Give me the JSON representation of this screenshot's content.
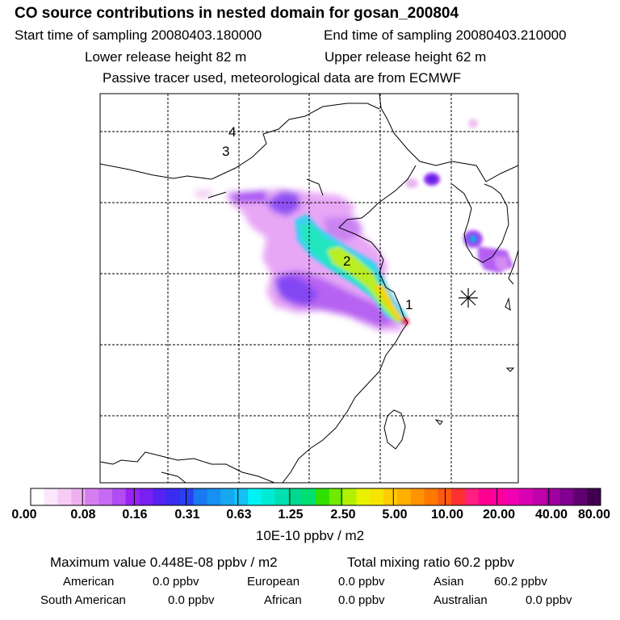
{
  "header": {
    "title": "CO  source contributions in nested domain for gosan_200804",
    "start_label": "Start time of sampling 20080403.180000",
    "end_label": "End time of sampling 20080403.210000",
    "lower_label": "Lower release height   82 m",
    "upper_label": "Upper release height   62 m",
    "note": "Passive tracer used, meteorological data are from ECMWF"
  },
  "map": {
    "markers": [
      "1",
      "2",
      "3",
      "4"
    ],
    "station_icon": "asterisk-station-icon"
  },
  "colorbar": {
    "ticks": [
      "0.00",
      "0.08",
      "0.16",
      "0.31",
      "0.63",
      "1.25",
      "2.50",
      "5.00",
      "10.00",
      "20.00",
      "40.00",
      "80.00"
    ],
    "units": "10E-10 ppbv / m2",
    "colors": [
      "#ffffff",
      "#fbe6fb",
      "#f6ccf6",
      "#efb0f2",
      "#d67ef0",
      "#c66cf2",
      "#b04cf2",
      "#9a22f2",
      "#7a1ff2",
      "#5522f0",
      "#3a2cf0",
      "#2840f2",
      "#1a78f0",
      "#1690f2",
      "#18a8f2",
      "#14c0f4",
      "#00f2f2",
      "#00ead6",
      "#00e0b0",
      "#00d890",
      "#00e070",
      "#30e000",
      "#70ea00",
      "#b0f000",
      "#e8f200",
      "#f6e400",
      "#ffcc00",
      "#ffb000",
      "#ff9400",
      "#ff7800",
      "#ff5a10",
      "#ff3030",
      "#ff2080",
      "#ff0090",
      "#ff00a0",
      "#f000b0",
      "#d800b0",
      "#c000a8",
      "#a000a0",
      "#800090",
      "#600070",
      "#400050"
    ]
  },
  "footer": {
    "max_label": "Maximum value  0.448E-08 ppbv / m2",
    "total_label": "Total mixing ratio       60.2 ppbv",
    "american_label": "American",
    "american_value": "0.0 ppbv",
    "european_label": "European",
    "european_value": "0.0 ppbv",
    "asian_label": "Asian",
    "asian_value": "60.2 ppbv",
    "south_american_label": "South American",
    "south_american_value": "0.0 ppbv",
    "african_label": "African",
    "african_value": "0.0 ppbv",
    "australian_label": "Australian",
    "australian_value": "0.0 ppbv"
  }
}
